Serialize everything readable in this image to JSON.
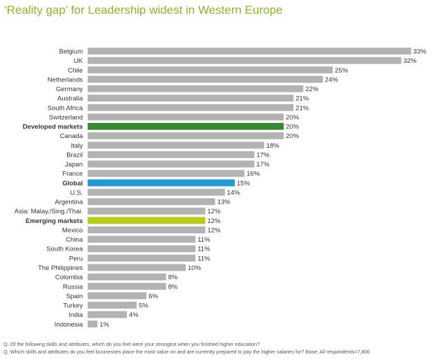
{
  "chart_data": {
    "type": "bar",
    "orientation": "horizontal",
    "title": "‘Reality gap’ for Leadership widest in Western Europe",
    "value_suffix": "%",
    "xlim": [
      0,
      35
    ],
    "colors": {
      "default": "#b3b3b3",
      "developed": "#3a8a34",
      "global": "#1f9ad6",
      "emerging": "#b5cc18"
    },
    "categories": [
      "Belgium",
      "UK",
      "Chile",
      "Netherlands",
      "Germany",
      "Australia",
      "South Africa",
      "Switzerland",
      "Developed markets",
      "Canada",
      "Italy",
      "Brazil",
      "Japan",
      "France",
      "Global",
      "U.S.",
      "Argentina",
      "Asia: Malay./Sing./Thai.",
      "Emerging markets",
      "Mexico",
      "China",
      "South Korea",
      "Peru",
      "The Philippines",
      "Colombia",
      "Russia",
      "Spain",
      "Turkey",
      "India",
      "Indonesia"
    ],
    "values": [
      33,
      32,
      25,
      24,
      22,
      21,
      21,
      20,
      20,
      20,
      18,
      17,
      17,
      16,
      15,
      14,
      13,
      12,
      12,
      12,
      11,
      11,
      11,
      10,
      8,
      8,
      6,
      5,
      4,
      1
    ],
    "highlights": {
      "Developed markets": "developed",
      "Global": "global",
      "Emerging markets": "emerging"
    }
  },
  "footnotes": [
    "Q. Of the following skills and attributes, which do you feel were your strongest when you finished higher education?",
    "Q. Which skills and attributes do you feel businesses place the most value on and are currently prepared to pay the higher salaries for? Base: All respondents=7,806"
  ]
}
